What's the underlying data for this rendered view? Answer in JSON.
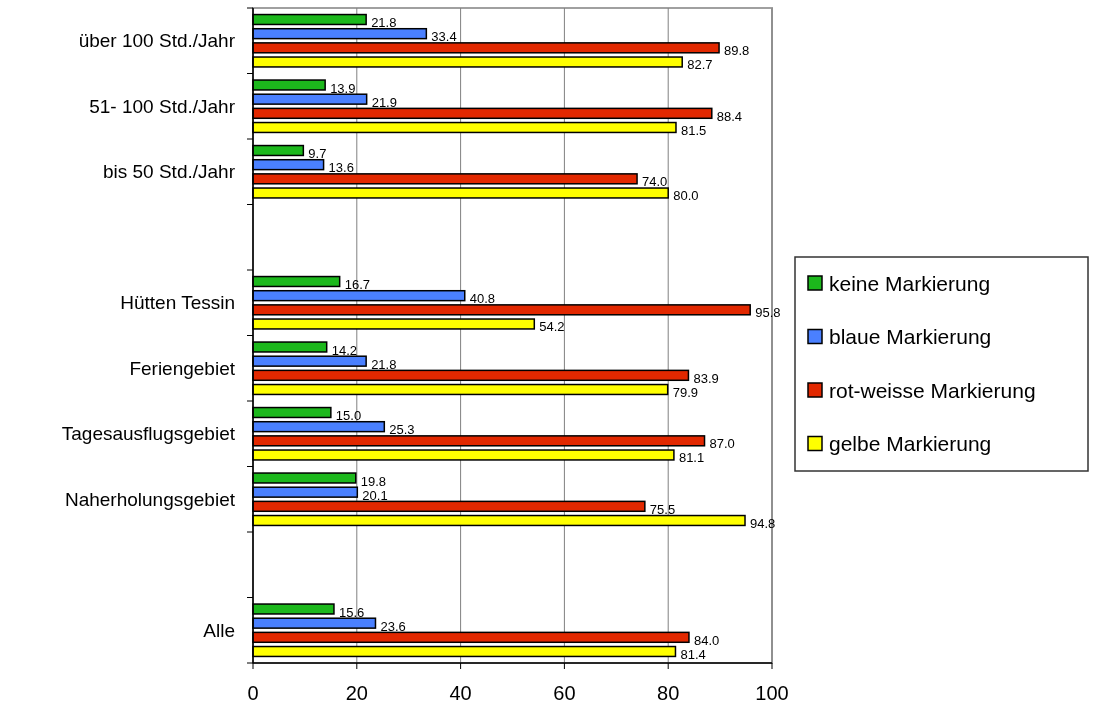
{
  "chart_data": {
    "type": "bar",
    "orientation": "horizontal",
    "categories": [
      "über 100 Std./Jahr",
      "51- 100 Std./Jahr",
      "bis 50 Std./Jahr",
      null,
      "Hütten Tessin",
      "Feriengebiet",
      "Tagesausflugsgebiet",
      "Naherholungsgebiet",
      null,
      "Alle"
    ],
    "series": [
      {
        "name": "keine Markierung",
        "color": "#1cb81c",
        "values": [
          21.8,
          13.9,
          9.7,
          null,
          16.7,
          14.2,
          15.0,
          19.8,
          null,
          15.6
        ],
        "value_labels": [
          "21.8",
          "13.9",
          "9.7",
          null,
          "16.7",
          "14.2",
          "15.0",
          "19.8",
          null,
          "15.6"
        ]
      },
      {
        "name": "blaue Markierung",
        "color": "#4a80ff",
        "values": [
          33.4,
          21.9,
          13.6,
          null,
          40.8,
          21.8,
          25.3,
          20.1,
          null,
          23.6
        ],
        "value_labels": [
          "33.4",
          "21.9",
          "13.6",
          null,
          "40.8",
          "21.8",
          "25.3",
          "20.1",
          null,
          "23.6"
        ]
      },
      {
        "name": "rot-weisse Markierung",
        "color": "#e22800",
        "values": [
          89.8,
          88.4,
          74.0,
          null,
          95.8,
          83.9,
          87.0,
          75.5,
          null,
          84.0
        ],
        "value_labels": [
          "89.8",
          "88.4",
          "74.0",
          null,
          "95.8",
          "83.9",
          "87.0",
          "75.5",
          null,
          "84.0"
        ]
      },
      {
        "name": "gelbe Markierung",
        "color": "#ffff00",
        "values": [
          82.7,
          81.5,
          80.0,
          null,
          54.2,
          79.9,
          81.1,
          94.8,
          null,
          81.4
        ],
        "value_labels": [
          "82.7",
          "81.5",
          "80.0",
          null,
          "54.2",
          "79.9",
          "81.1",
          "94.8",
          null,
          "81.4"
        ]
      }
    ],
    "xlim": [
      0,
      100
    ],
    "xticks": [
      0,
      20,
      40,
      60,
      80,
      100
    ],
    "grid": "x",
    "legend": "right"
  }
}
